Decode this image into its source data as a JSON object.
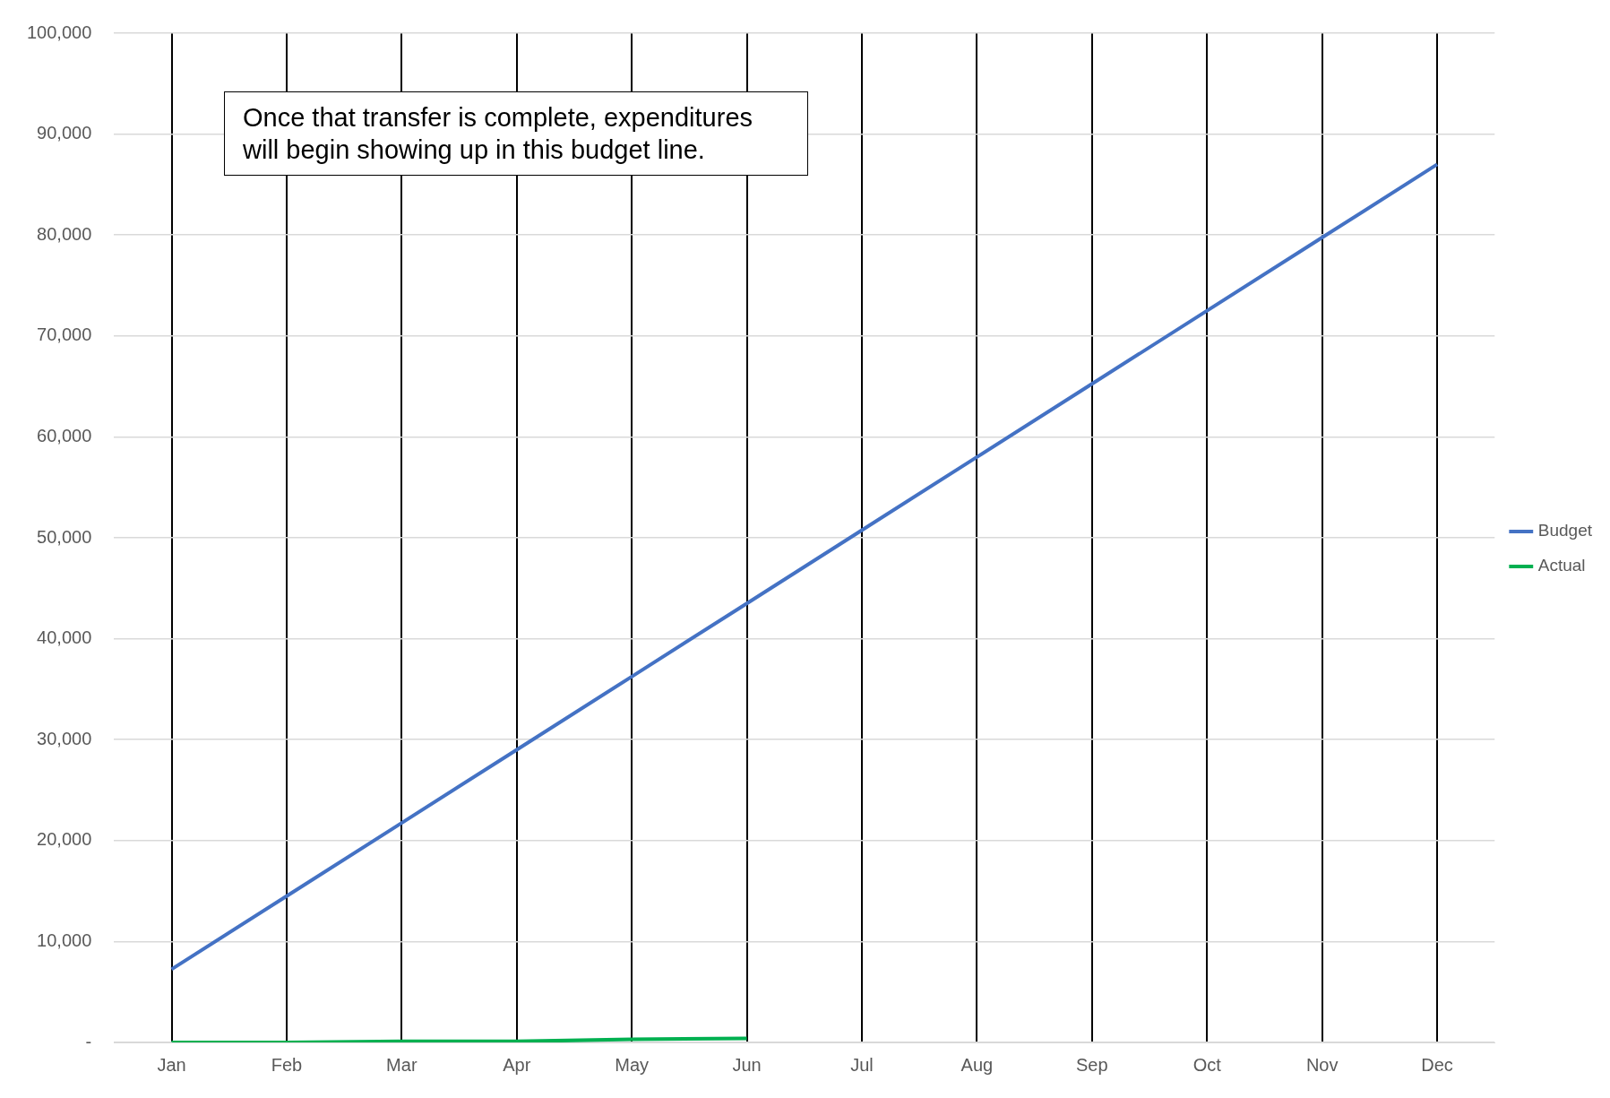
{
  "chart_data": {
    "type": "line",
    "categories": [
      "Jan",
      "Feb",
      "Mar",
      "Apr",
      "May",
      "Jun",
      "Jul",
      "Aug",
      "Sep",
      "Oct",
      "Nov",
      "Dec"
    ],
    "series": [
      {
        "name": "Budget",
        "color": "#4472c4",
        "values": [
          7250,
          14500,
          21750,
          29000,
          36250,
          43500,
          50750,
          58000,
          65250,
          72500,
          79750,
          87000
        ]
      },
      {
        "name": "Actual",
        "color": "#00b050",
        "values": [
          0,
          0,
          100,
          100,
          300,
          400,
          null,
          null,
          null,
          null,
          null,
          null
        ]
      }
    ],
    "ylim": [
      0,
      100000
    ],
    "yticks": [
      {
        "value": 0,
        "label": "-"
      },
      {
        "value": 10000,
        "label": "10,000"
      },
      {
        "value": 20000,
        "label": "20,000"
      },
      {
        "value": 30000,
        "label": "30,000"
      },
      {
        "value": 40000,
        "label": "40,000"
      },
      {
        "value": 50000,
        "label": "50,000"
      },
      {
        "value": 60000,
        "label": "60,000"
      },
      {
        "value": 70000,
        "label": "70,000"
      },
      {
        "value": 80000,
        "label": "80,000"
      },
      {
        "value": 90000,
        "label": "90,000"
      },
      {
        "value": 100000,
        "label": "100,000"
      }
    ],
    "grid": true,
    "legend": "right",
    "marker": "none",
    "line_style": "solid",
    "annotations": [
      "Once that transfer is complete, expenditures will begin showing up in this budget line."
    ]
  }
}
